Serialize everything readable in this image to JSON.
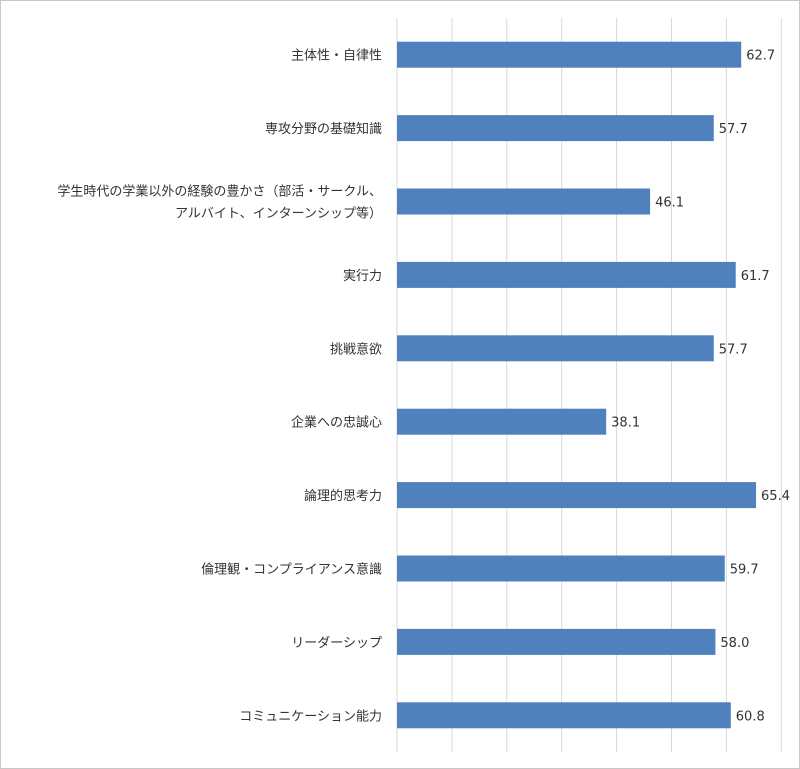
{
  "chart_data": {
    "type": "bar",
    "orientation": "horizontal",
    "categories": [
      [
        "主体性・自律性"
      ],
      [
        "専攻分野の基礎知識"
      ],
      [
        "学生時代の学業以外の経験の豊かさ（部活・サークル、",
        "アルバイト、インターンシップ等）"
      ],
      [
        "実行力"
      ],
      [
        "挑戦意欲"
      ],
      [
        "企業への忠誠心"
      ],
      [
        "論理的思考力"
      ],
      [
        "倫理観・コンプライアンス意識"
      ],
      [
        "リーダーシップ"
      ],
      [
        "コミュニケーション能力"
      ]
    ],
    "values": [
      62.7,
      57.7,
      46.1,
      61.7,
      57.7,
      38.1,
      65.4,
      59.7,
      58.0,
      60.8
    ],
    "value_labels": [
      "62.7",
      "57.7",
      "46.1",
      "61.7",
      "57.7",
      "38.1",
      "65.4",
      "59.7",
      "58.0",
      "60.8"
    ],
    "xlim": [
      0,
      70
    ],
    "x_grid_step": 10,
    "grid": true,
    "bar_color": "#4f81bd",
    "grid_color": "#d9d9d9",
    "title": "",
    "xlabel": "",
    "ylabel": ""
  }
}
